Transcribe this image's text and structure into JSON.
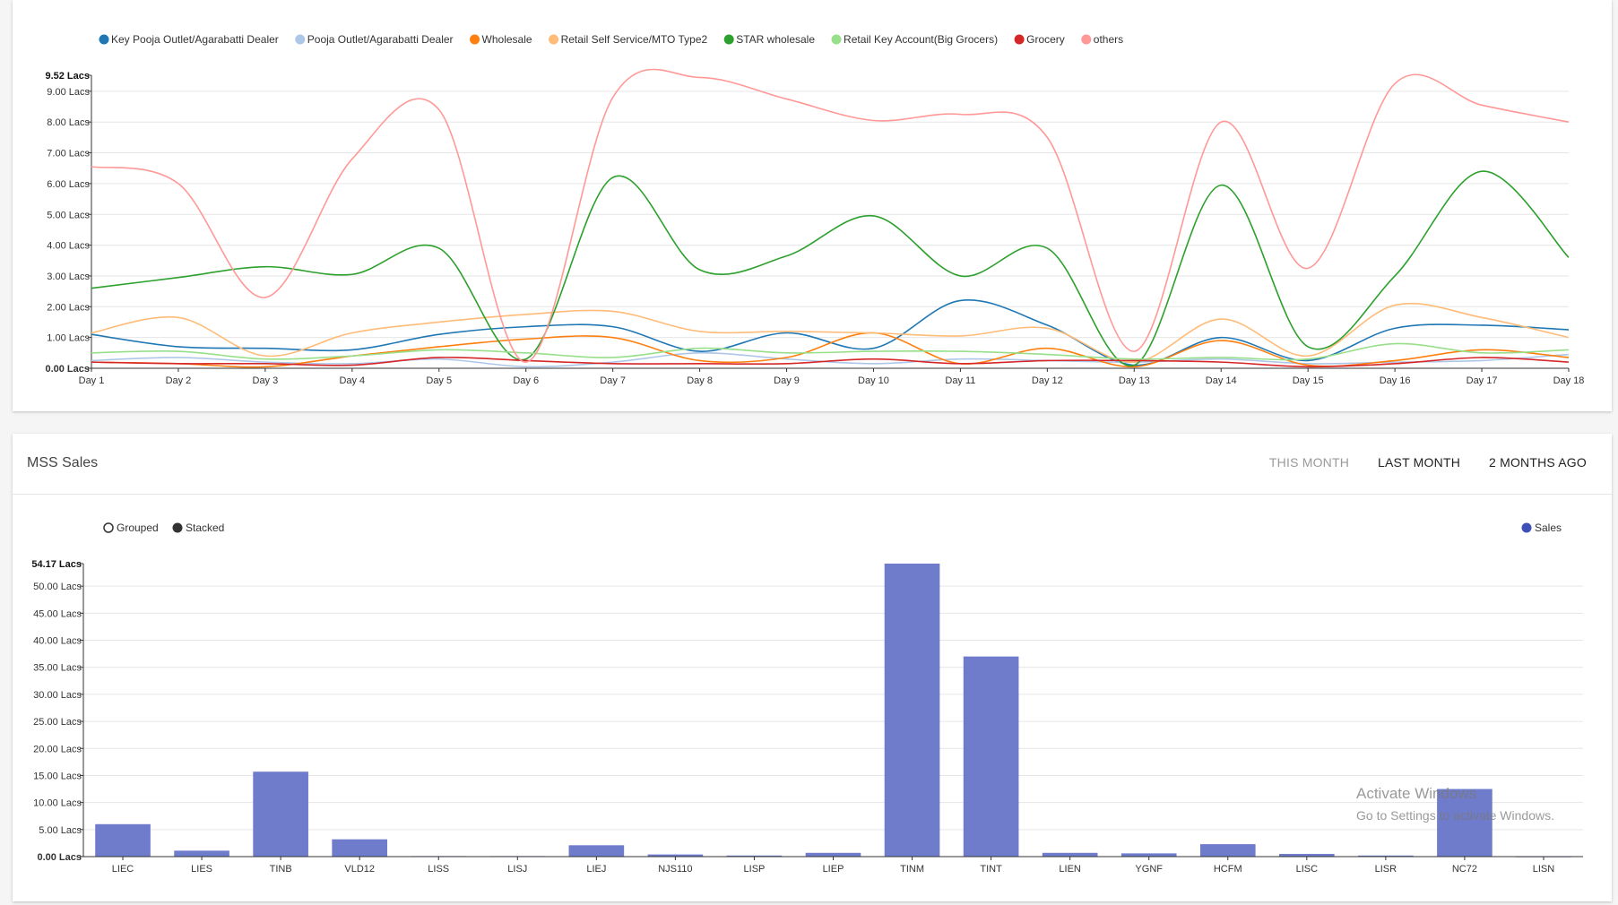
{
  "line_card": {
    "legend": [
      {
        "name": "Key Pooja Outlet/Agarabatti Dealer",
        "color": "#1f77b4"
      },
      {
        "name": "Pooja Outlet/Agarabatti Dealer",
        "color": "#aec7e8"
      },
      {
        "name": "Wholesale",
        "color": "#ff7f0e"
      },
      {
        "name": "Retail Self Service/MTO Type2",
        "color": "#ffbb78"
      },
      {
        "name": "STAR wholesale",
        "color": "#2ca02c"
      },
      {
        "name": "Retail Key Account(Big Grocers)",
        "color": "#98df8a"
      },
      {
        "name": "Grocery",
        "color": "#d62728"
      },
      {
        "name": "others",
        "color": "#ff9896"
      }
    ]
  },
  "chart_data": [
    {
      "type": "line",
      "x": [
        "Day 1",
        "Day 2",
        "Day 3",
        "Day 4",
        "Day 5",
        "Day 6",
        "Day 7",
        "Day 8",
        "Day 9",
        "Day 10",
        "Day 11",
        "Day 12",
        "Day 13",
        "Day 14",
        "Day 15",
        "Day 16",
        "Day 17",
        "Day 18"
      ],
      "yticks": [
        "0.00 Lacs",
        "1.00 Lacs",
        "2.00 Lacs",
        "3.00 Lacs",
        "4.00 Lacs",
        "5.00 Lacs",
        "6.00 Lacs",
        "7.00 Lacs",
        "8.00 Lacs",
        "9.00 Lacs"
      ],
      "ymax_label": "9.52 Lacs",
      "ylim": [
        0,
        9.52
      ],
      "legend_position": "top-left",
      "series": [
        {
          "name": "Key Pooja Outlet/Agarabatti Dealer",
          "color": "#1f77b4",
          "values": [
            1.1,
            0.7,
            0.65,
            0.6,
            1.1,
            1.35,
            1.35,
            0.55,
            1.15,
            0.65,
            2.2,
            1.4,
            0.1,
            1.0,
            0.25,
            1.3,
            1.4,
            1.25
          ]
        },
        {
          "name": "Pooja Outlet/Agarabatti Dealer",
          "color": "#aec7e8",
          "values": [
            0.25,
            0.35,
            0.2,
            0.15,
            0.3,
            0.05,
            0.2,
            0.5,
            0.3,
            0.15,
            0.3,
            0.25,
            0.2,
            0.3,
            0.15,
            0.2,
            0.25,
            0.45
          ]
        },
        {
          "name": "Wholesale",
          "color": "#ff7f0e",
          "values": [
            0.2,
            0.15,
            0.05,
            0.4,
            0.7,
            0.95,
            1.0,
            0.25,
            0.35,
            1.15,
            0.15,
            0.65,
            0.05,
            0.9,
            0.1,
            0.25,
            0.6,
            0.35
          ]
        },
        {
          "name": "Retail Self Service/MTO Type2",
          "color": "#ffbb78",
          "values": [
            1.15,
            1.65,
            0.4,
            1.15,
            1.5,
            1.75,
            1.85,
            1.2,
            1.2,
            1.15,
            1.05,
            1.3,
            0.2,
            1.6,
            0.4,
            2.05,
            1.65,
            1.0
          ]
        },
        {
          "name": "STAR wholesale",
          "color": "#2ca02c",
          "values": [
            2.6,
            2.95,
            3.3,
            3.05,
            3.9,
            0.3,
            6.2,
            3.2,
            3.65,
            4.95,
            3.0,
            3.9,
            0.1,
            5.95,
            0.7,
            3.0,
            6.4,
            3.6
          ]
        },
        {
          "name": "Retail Key Account(Big Grocers)",
          "color": "#98df8a",
          "values": [
            0.5,
            0.55,
            0.3,
            0.4,
            0.6,
            0.5,
            0.35,
            0.65,
            0.5,
            0.55,
            0.55,
            0.45,
            0.3,
            0.35,
            0.3,
            0.8,
            0.5,
            0.6
          ]
        },
        {
          "name": "Grocery",
          "color": "#d62728",
          "values": [
            0.2,
            0.15,
            0.15,
            0.1,
            0.35,
            0.25,
            0.15,
            0.15,
            0.15,
            0.3,
            0.15,
            0.25,
            0.25,
            0.2,
            0.05,
            0.15,
            0.35,
            0.2
          ]
        },
        {
          "name": "others",
          "color": "#ff9896",
          "values": [
            6.55,
            6.0,
            2.3,
            6.8,
            8.4,
            0.2,
            8.8,
            9.45,
            8.75,
            8.05,
            8.25,
            7.5,
            0.55,
            8.0,
            3.25,
            9.25,
            8.55,
            8.0
          ]
        }
      ]
    },
    {
      "type": "bar",
      "title": "MSS Sales",
      "categories": [
        "LIEC",
        "LIES",
        "TINB",
        "VLD12",
        "LISS",
        "LISJ",
        "LIEJ",
        "NJS110",
        "LISP",
        "LIEP",
        "TINM",
        "TINT",
        "LIEN",
        "YGNF",
        "HCFM",
        "LISC",
        "LISR",
        "NC72",
        "LISN"
      ],
      "series": [
        {
          "name": "Sales",
          "color": "#6f7ccc",
          "values": [
            6.0,
            1.1,
            15.7,
            3.2,
            0.1,
            0.1,
            2.1,
            0.4,
            0.2,
            0.7,
            54.17,
            37.0,
            0.7,
            0.6,
            2.3,
            0.5,
            0.2,
            12.5,
            0.05
          ]
        }
      ],
      "yticks": [
        "0.00 Lacs",
        "5.00 Lacs",
        "10.00 Lacs",
        "15.00 Lacs",
        "20.00 Lacs",
        "25.00 Lacs",
        "30.00 Lacs",
        "35.00 Lacs",
        "40.00 Lacs",
        "45.00 Lacs",
        "50.00 Lacs"
      ],
      "ymax_label": "54.17 Lacs",
      "ylim": [
        0,
        54.17
      ],
      "legend_position": "top-right"
    }
  ],
  "bar_card": {
    "title": "MSS Sales",
    "tabs": [
      {
        "label": "THIS MONTH",
        "active": false
      },
      {
        "label": "LAST MONTH",
        "active": true
      },
      {
        "label": "2 MONTHS AGO",
        "active": true
      }
    ],
    "controls": {
      "grouped": "Grouped",
      "stacked": "Stacked"
    },
    "legend": {
      "name": "Sales",
      "color": "#3f51b5"
    }
  },
  "watermark": {
    "title": "Activate Windows",
    "subtitle": "Go to Settings to activate Windows."
  }
}
